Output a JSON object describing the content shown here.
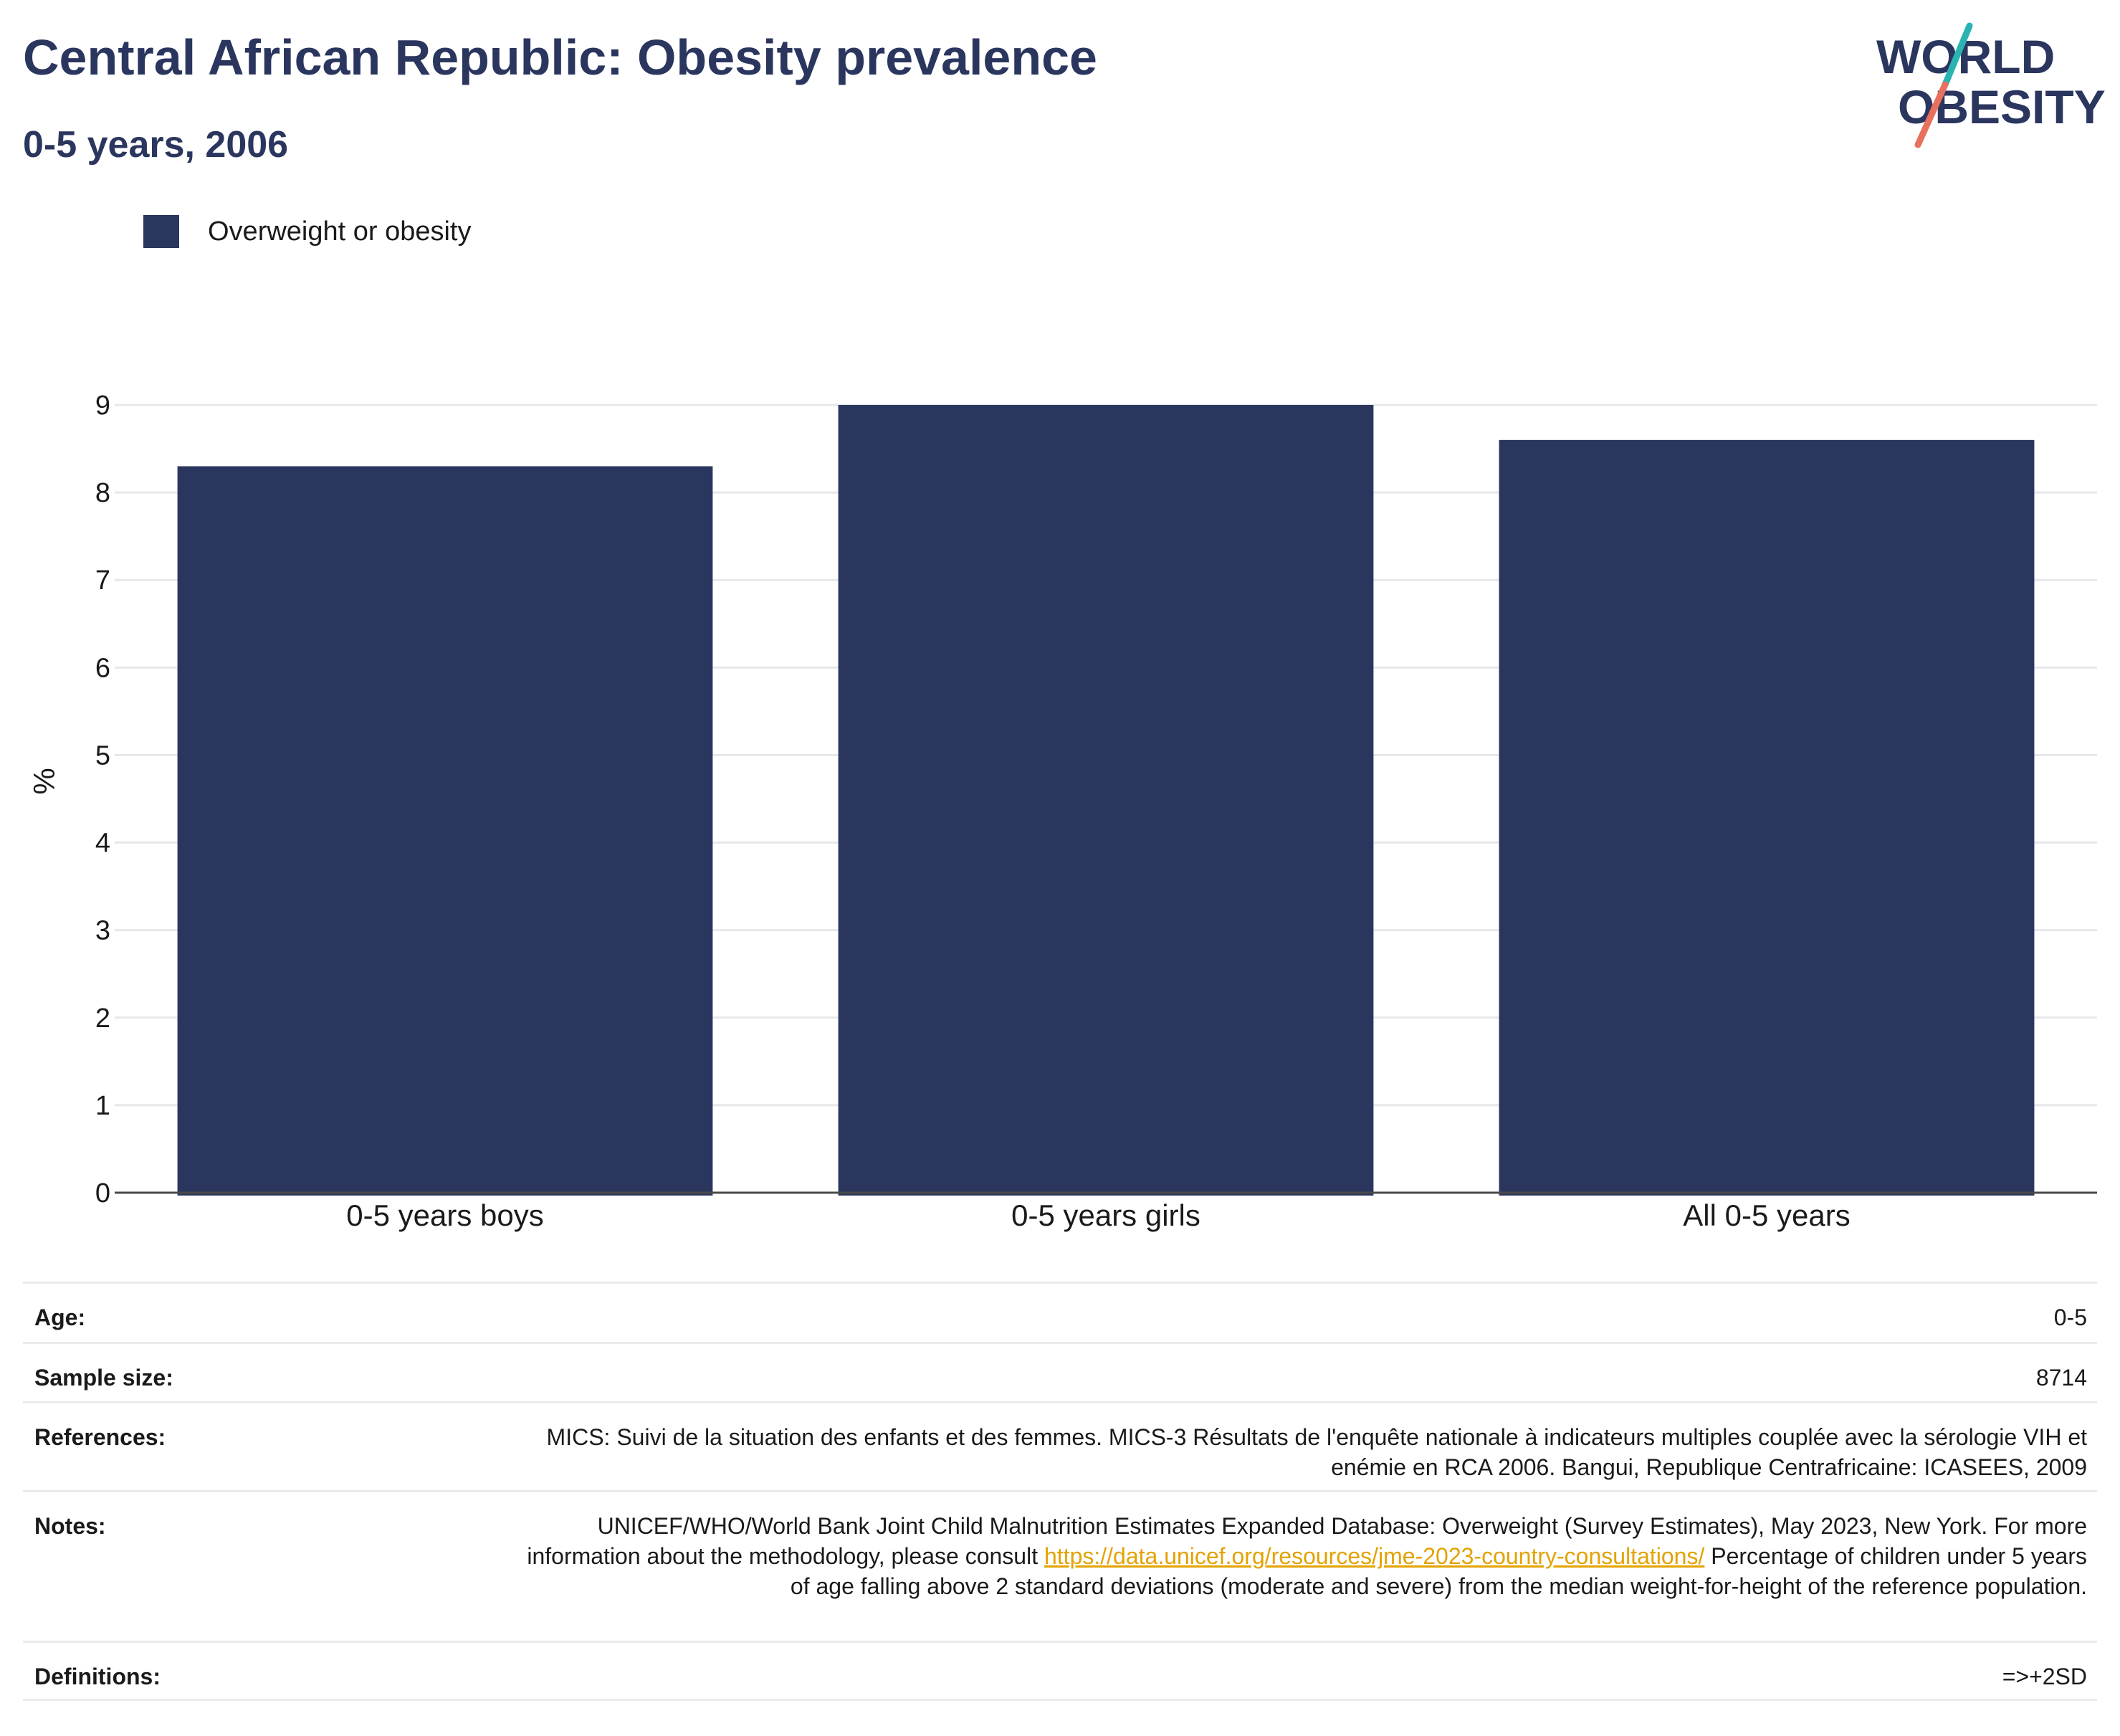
{
  "header": {
    "title": "Central African Republic: Obesity prevalence",
    "subtitle": "0-5 years, 2006"
  },
  "logo": {
    "line1": "WORLD",
    "line2": "OBESITY",
    "accent_teal": "#2ab3b1",
    "accent_coral": "#e8705f"
  },
  "colors": {
    "bar": "#2b365f",
    "title": "#2b365f",
    "grid": "#e6e8ec",
    "link": "#e3a300"
  },
  "chart_data": {
    "type": "bar",
    "categories": [
      "0-5 years boys",
      "0-5 years girls",
      "All 0-5 years"
    ],
    "series": [
      {
        "name": "Overweight or obesity",
        "values": [
          8.3,
          9.0,
          8.6
        ]
      }
    ],
    "ylabel": "%",
    "xlabel": "",
    "ylim": [
      0,
      9
    ],
    "yticks": [
      "0",
      "1",
      "2",
      "3",
      "4",
      "5",
      "6",
      "7",
      "8",
      "9"
    ],
    "grid": true,
    "legend": "top-left"
  },
  "meta": {
    "age_label": "Age:",
    "age_value": "0-5",
    "sample_label": "Sample size:",
    "sample_value": "8714",
    "references_label": "References:",
    "references_value": "MICS: Suivi de la situation des enfants et des femmes. MICS-3 Résultats de l'enquête nationale à indicateurs multiples couplée avec la sérologie VIH et enémie en RCA 2006. Bangui, Republique Centrafricaine: ICASEES, 2009",
    "notes_label": "Notes:",
    "notes_text_1": "UNICEF/WHO/World Bank Joint Child Malnutrition Estimates Expanded Database: Overweight (Survey Estimates), May 2023, New York. For more information about the methodology, please consult",
    "notes_link": "https://data.unicef.org/resources/jme-2023-country-consultations/",
    "notes_text_2": "Percentage of children under 5 years of age falling above 2 standard deviations (moderate and severe) from the median weight-for-height of the reference population.",
    "definitions_label": "Definitions:",
    "definitions_value": "=>+2SD"
  }
}
